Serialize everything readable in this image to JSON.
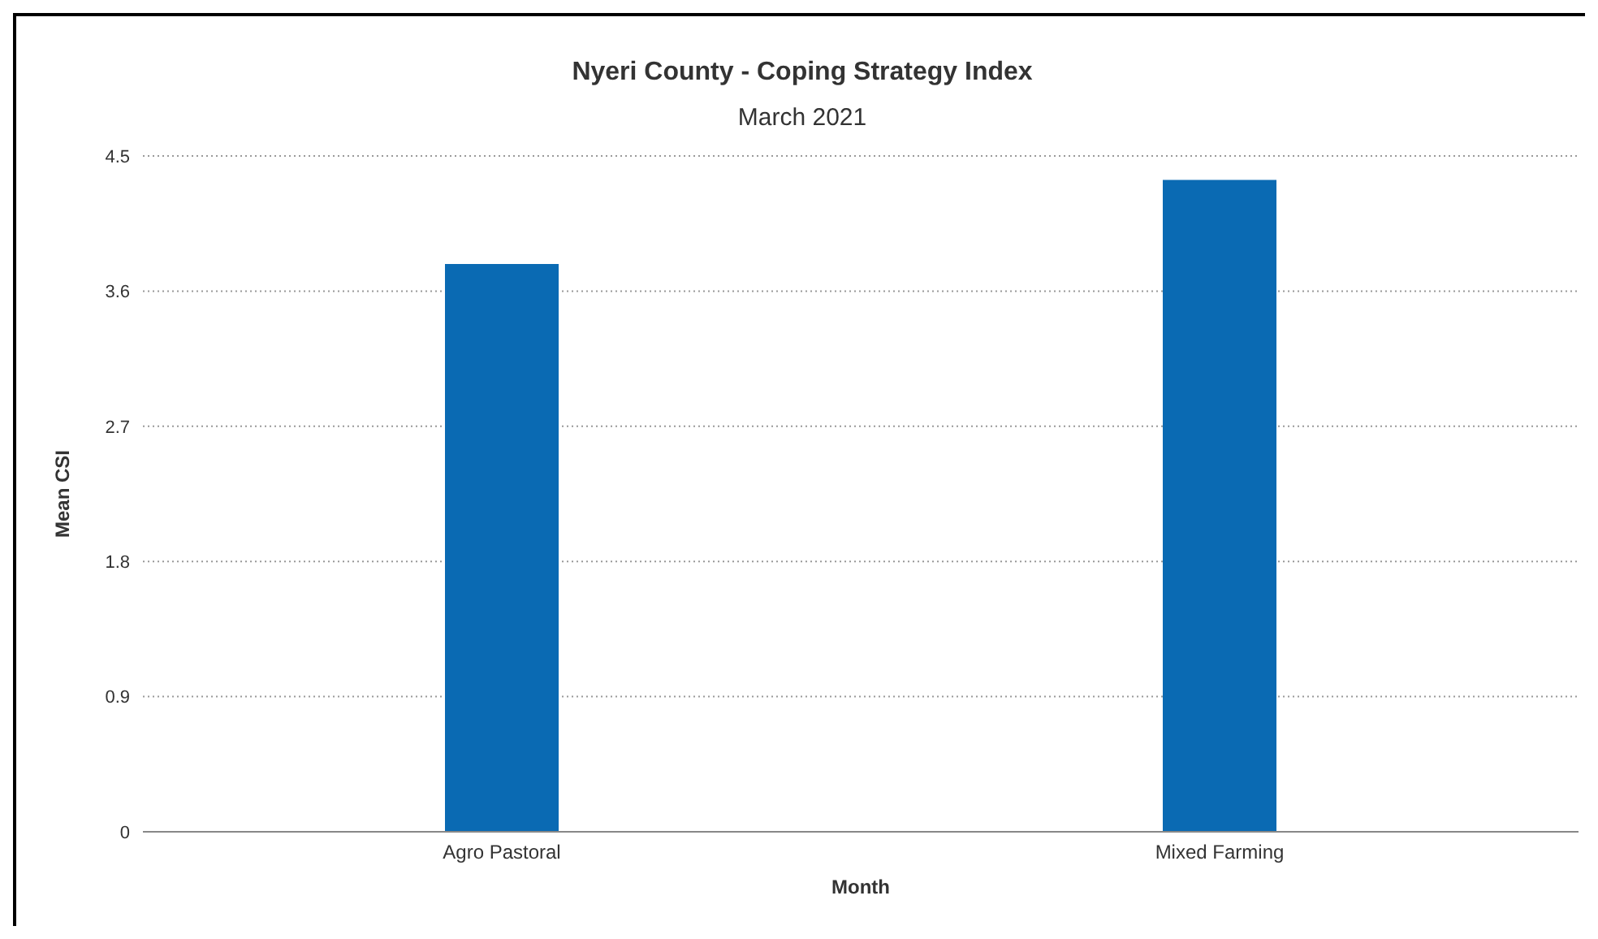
{
  "chart_data": {
    "type": "bar",
    "title": "Nyeri County - Coping Strategy Index",
    "subtitle": "March 2021",
    "xlabel": "Month",
    "ylabel": "Mean CSI",
    "categories": [
      "Agro Pastoral",
      "Mixed Farming"
    ],
    "values": [
      3.78,
      4.34
    ],
    "color": "#0a6ab3",
    "ylim": [
      0,
      4.5
    ],
    "yticks": [
      0,
      0.9,
      1.8,
      2.7,
      3.6,
      4.5
    ],
    "grid": "y"
  }
}
